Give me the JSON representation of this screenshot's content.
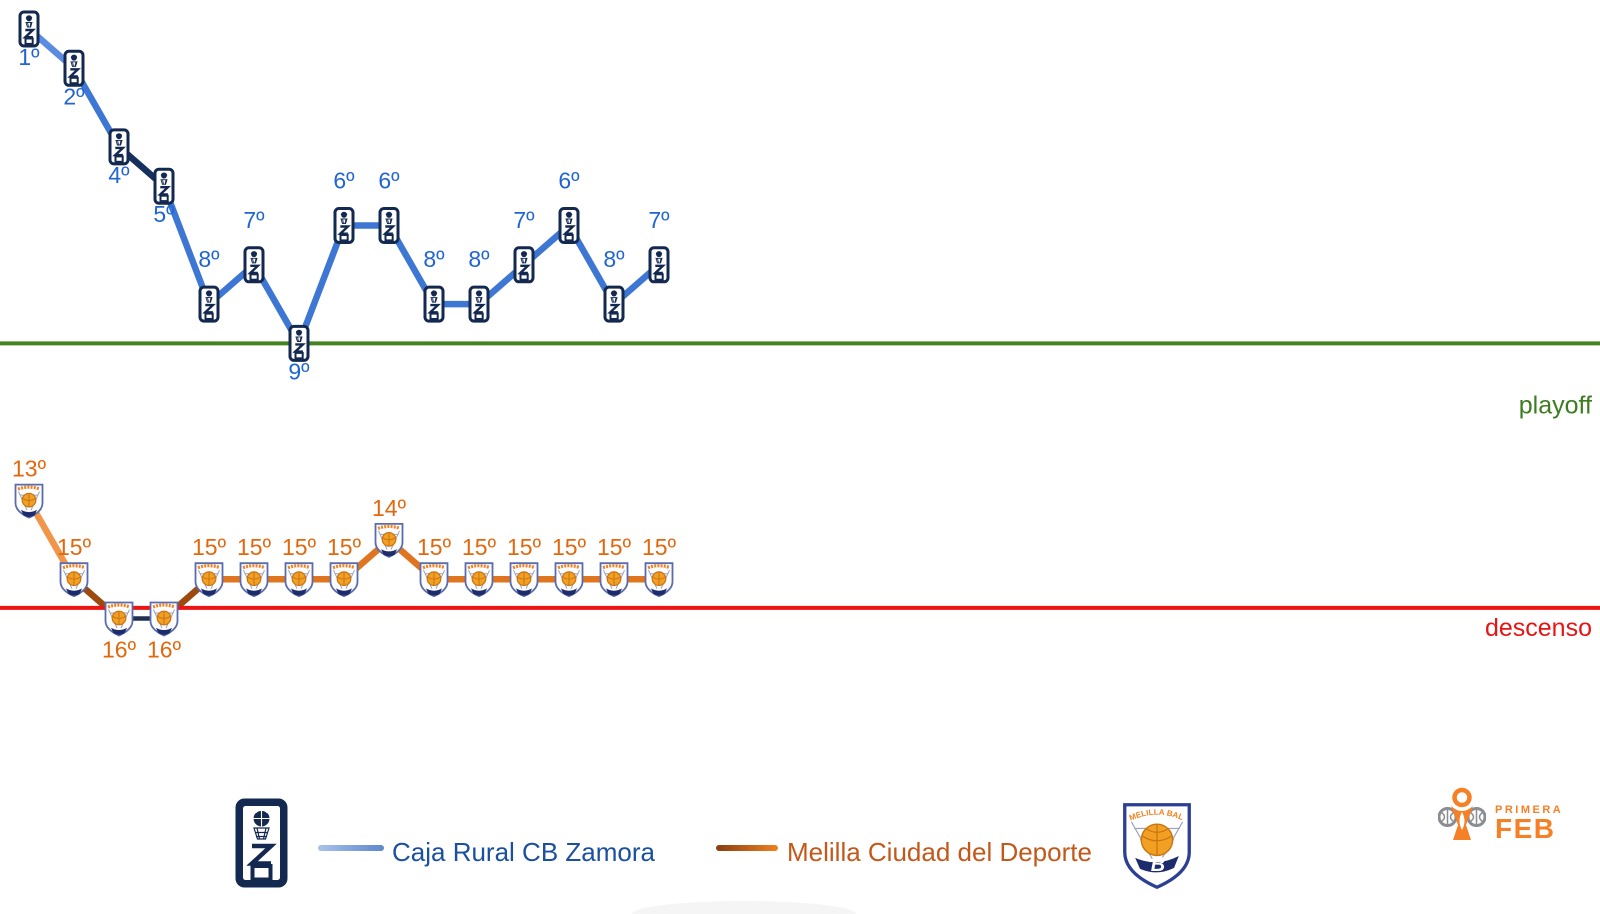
{
  "chart_data": {
    "type": "line",
    "title": "",
    "xlabel": "",
    "ylabel": "",
    "ylim": [
      1,
      16
    ],
    "grid": false,
    "legend_position": "bottom",
    "series": [
      {
        "name": "Caja Rural CB Zamora",
        "marker": "m-zamora",
        "positions": [
          1,
          2,
          4,
          5,
          8,
          7,
          9,
          6,
          6,
          8,
          8,
          7,
          6,
          8,
          7
        ],
        "labels": [
          "1º",
          "2º",
          "4º",
          "5º",
          "8º",
          "7º",
          "9º",
          "6º",
          "6º",
          "8º",
          "8º",
          "7º",
          "6º",
          "8º",
          "7º"
        ],
        "label_side": [
          "below",
          "below",
          "below",
          "below",
          "above",
          "above",
          "below",
          "above",
          "above",
          "above",
          "above",
          "above",
          "above",
          "above",
          "above"
        ],
        "label_color": "#2165d2",
        "colors": {
          "normal": "#3d77d3",
          "light": "#5b8ce0",
          "dark": "#16305e",
          "sienna": "#9c4a10"
        },
        "segment_styles": [
          "light",
          "normal",
          "dark",
          "normal",
          "normal",
          "normal",
          "normal",
          "normal",
          "normal",
          "normal",
          "normal",
          "normal",
          "normal",
          "normal"
        ],
        "segment_widths": {
          "normal": 6.5,
          "light": 6.5,
          "dark": 6.5,
          "sienna": 6.5
        }
      },
      {
        "name": "Melilla Ciudad del Deporte",
        "marker": "m-melilla",
        "positions": [
          13,
          15,
          16,
          16,
          15,
          15,
          15,
          15,
          14,
          15,
          15,
          15,
          15,
          15,
          15
        ],
        "labels": [
          "13º",
          "15º",
          "16º",
          "16º",
          "15º",
          "15º",
          "15º",
          "15º",
          "14º",
          "15º",
          "15º",
          "15º",
          "15º",
          "15º",
          "15º"
        ],
        "label_side": [
          "above",
          "above",
          "below",
          "below",
          "above",
          "above",
          "above",
          "above",
          "above",
          "above",
          "above",
          "above",
          "above",
          "above",
          "above"
        ],
        "label_color": "#e2680e",
        "colors": {
          "normal": "#e0751f",
          "light": "#f0954a",
          "dark": "#22304f",
          "sienna": "#9c4a10"
        },
        "segment_styles": [
          "light",
          "sienna",
          "dark",
          "sienna",
          "normal",
          "normal",
          "normal",
          "normal",
          "normal",
          "normal",
          "normal",
          "normal",
          "normal",
          "normal"
        ],
        "segment_widths": {
          "normal": 6.5,
          "light": 6.5,
          "dark": 4.5,
          "sienna": 6.5
        }
      }
    ],
    "reference_lines": [
      {
        "label": "playoff",
        "at_position": 9.0,
        "color": "#44831e",
        "label_color": "#3b7d1f"
      },
      {
        "label": "descenso",
        "at_position": 15.73,
        "color": "#ee1412",
        "label_color": "#e81313"
      }
    ]
  },
  "legend": {
    "zamora_label": "Caja Rural CB Zamora",
    "zamora_color": "#1b4fa0",
    "melilla_label": "Melilla Ciudad del Deporte",
    "melilla_color": "#c2591a"
  },
  "branding": {
    "primera": "PRIMERA",
    "feb": "FEB",
    "accent": "#f58025"
  }
}
